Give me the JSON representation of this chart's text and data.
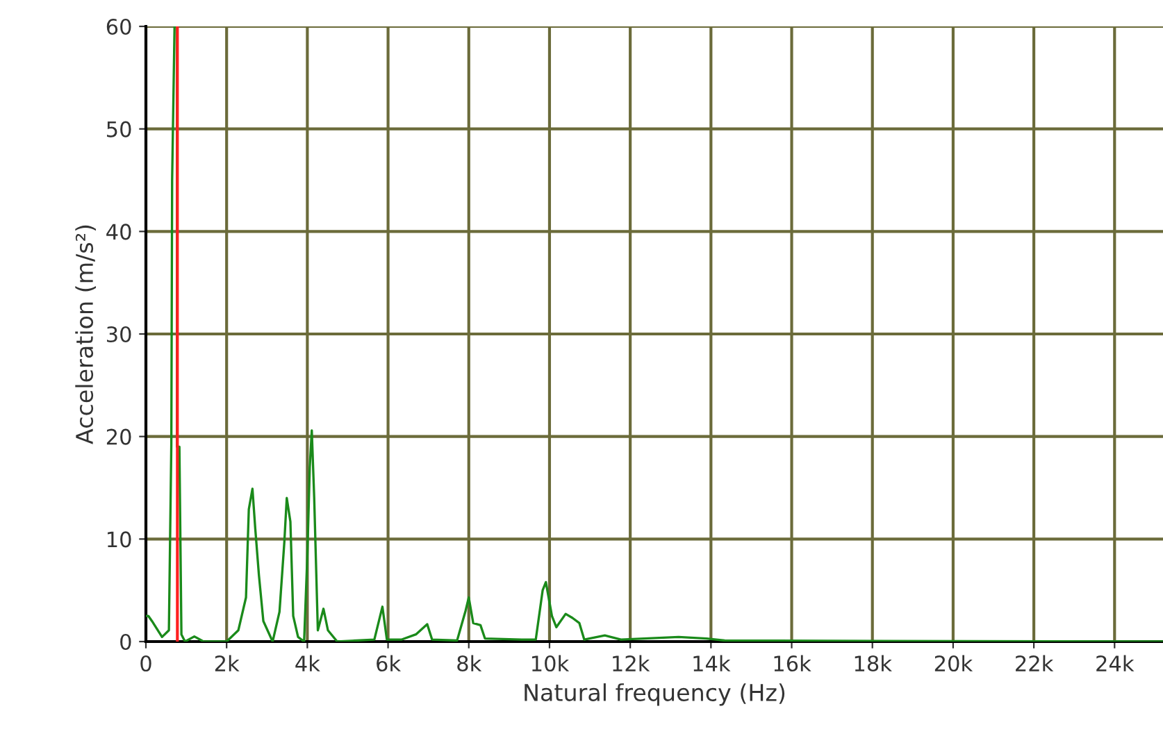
{
  "chart_data": {
    "type": "line",
    "xlabel": "Natural frequency (Hz)",
    "ylabel": "Acceleration (m/s²)",
    "xlim": [
      0,
      25200
    ],
    "ylim": [
      0,
      60
    ],
    "xticks": [
      {
        "value": 0,
        "label": "0"
      },
      {
        "value": 2000,
        "label": "2k"
      },
      {
        "value": 4000,
        "label": "4k"
      },
      {
        "value": 6000,
        "label": "6k"
      },
      {
        "value": 8000,
        "label": "8k"
      },
      {
        "value": 10000,
        "label": "10k"
      },
      {
        "value": 12000,
        "label": "12k"
      },
      {
        "value": 14000,
        "label": "14k"
      },
      {
        "value": 16000,
        "label": "16k"
      },
      {
        "value": 18000,
        "label": "18k"
      },
      {
        "value": 20000,
        "label": "20k"
      },
      {
        "value": 22000,
        "label": "22k"
      },
      {
        "value": 24000,
        "label": "24k"
      }
    ],
    "yticks": [
      0,
      10,
      20,
      30,
      40,
      50,
      60
    ],
    "grid": true,
    "legend": false,
    "marker": "none",
    "line_style": "solid",
    "ref_lines": [
      {
        "axis": "x",
        "value": 780,
        "color": "#ff2020"
      }
    ],
    "series": [
      {
        "color": "#1a8a1a",
        "x": [
          0,
          60,
          150,
          400,
          570,
          630,
          650,
          710,
          770,
          770,
          830,
          880,
          970,
          1200,
          1430,
          2000,
          2290,
          2480,
          2550,
          2640,
          2710,
          2800,
          2910,
          3140,
          3310,
          3430,
          3490,
          3580,
          3650,
          3770,
          3920,
          4000,
          4060,
          4110,
          4170,
          4260,
          4400,
          4510,
          4740,
          5660,
          5860,
          5970,
          6340,
          6690,
          6970,
          7090,
          7710,
          7920,
          8000,
          8110,
          8290,
          8400,
          9310,
          9660,
          9830,
          9910,
          10060,
          10170,
          10400,
          10570,
          10740,
          10860,
          11370,
          11770,
          13200,
          13890,
          14340,
          25200
        ],
        "values": [
          2.5,
          2.5,
          2.0,
          0.45,
          1.1,
          19.2,
          45,
          60,
          60,
          19,
          19,
          0.7,
          0,
          0.5,
          0,
          0,
          1.1,
          4.3,
          12.9,
          14.9,
          11,
          6.5,
          2,
          0,
          2.9,
          9.7,
          14,
          11.7,
          2.5,
          0.45,
          0,
          8.4,
          17,
          20.6,
          14,
          1.1,
          3.2,
          1.1,
          0,
          0.2,
          3.4,
          0.2,
          0.2,
          0.7,
          1.7,
          0.2,
          0.1,
          3,
          4.3,
          1.8,
          1.6,
          0.3,
          0.2,
          0.2,
          5,
          5.8,
          2.5,
          1.4,
          2.7,
          2.3,
          1.8,
          0.2,
          0.6,
          0.2,
          0.45,
          0.3,
          0.1,
          0
        ]
      }
    ]
  }
}
